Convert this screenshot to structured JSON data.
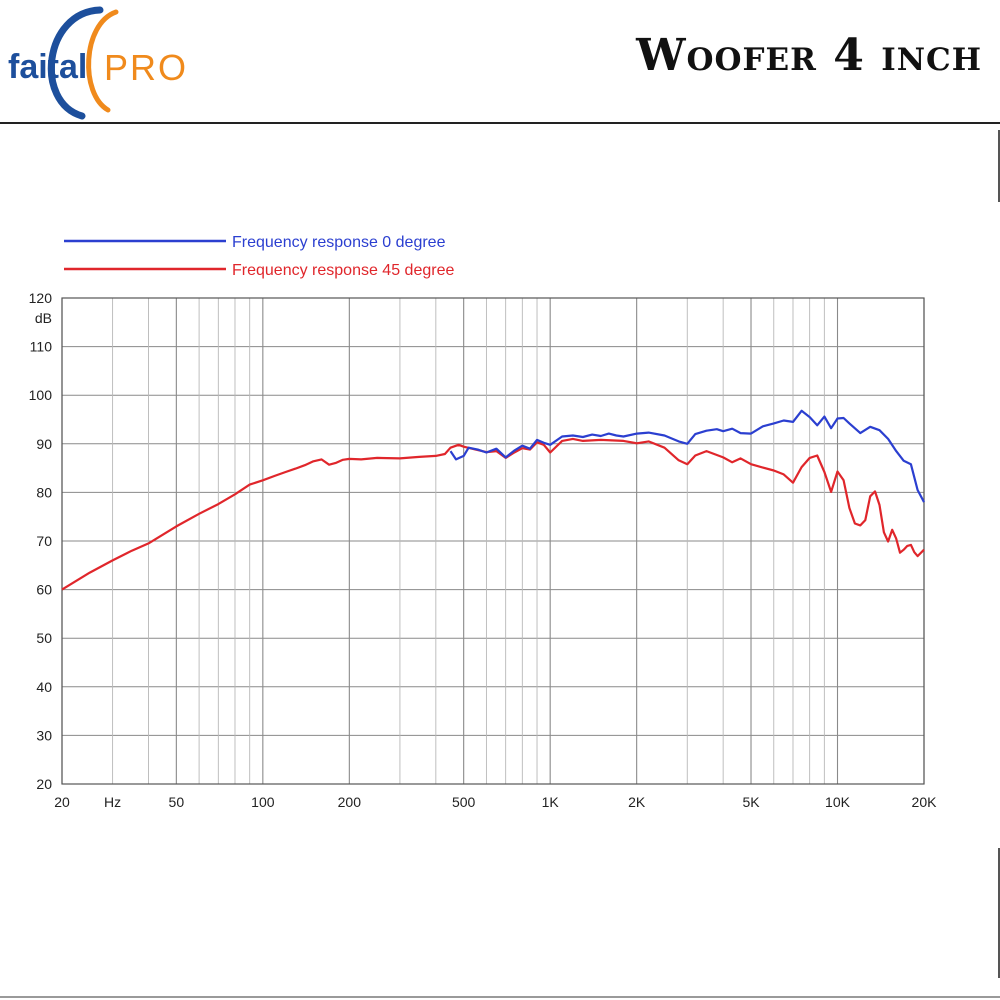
{
  "header": {
    "logo": {
      "text_primary": "faital",
      "text_secondary": "PRO",
      "primary_color": "#1d4f9c",
      "secondary_color": "#f08a1c"
    },
    "title": "Woofer 4 inch"
  },
  "colors": {
    "blue_series": "#2b3fd0",
    "red_series": "#e0262b",
    "grid_major": "#8a8a8a",
    "grid_minor": "#b8b8b8"
  },
  "chart_data": {
    "type": "line",
    "x_scale": "log",
    "xlim": [
      20,
      20000
    ],
    "ylim": [
      20,
      120
    ],
    "ylabel": "dB",
    "xunit": "Hz",
    "grid": true,
    "legend_placement": "top-left",
    "y_ticks": [
      120,
      110,
      100,
      90,
      80,
      70,
      60,
      50,
      40,
      30,
      20
    ],
    "x_ticks": [
      {
        "value": 20,
        "label": "20"
      },
      {
        "value": 30,
        "label": "Hz"
      },
      {
        "value": 50,
        "label": "50"
      },
      {
        "value": 100,
        "label": "100"
      },
      {
        "value": 200,
        "label": "200"
      },
      {
        "value": 500,
        "label": "500"
      },
      {
        "value": 1000,
        "label": "1K"
      },
      {
        "value": 2000,
        "label": "2K"
      },
      {
        "value": 5000,
        "label": "5K"
      },
      {
        "value": 10000,
        "label": "10K"
      },
      {
        "value": 20000,
        "label": "20K"
      }
    ],
    "series": [
      {
        "name": "Frequency response 0 degree",
        "color": "#2b3fd0",
        "points": [
          [
            450,
            88.5
          ],
          [
            470,
            86.8
          ],
          [
            500,
            87.5
          ],
          [
            520,
            89.2
          ],
          [
            560,
            88.8
          ],
          [
            600,
            88.2
          ],
          [
            650,
            89
          ],
          [
            700,
            87.2
          ],
          [
            750,
            88.6
          ],
          [
            800,
            89.6
          ],
          [
            850,
            89
          ],
          [
            900,
            90.8
          ],
          [
            950,
            90.2
          ],
          [
            1000,
            89.8
          ],
          [
            1100,
            91.5
          ],
          [
            1200,
            91.7
          ],
          [
            1300,
            91.4
          ],
          [
            1400,
            91.9
          ],
          [
            1500,
            91.6
          ],
          [
            1600,
            92.1
          ],
          [
            1700,
            91.7
          ],
          [
            1800,
            91.5
          ],
          [
            2000,
            92.1
          ],
          [
            2200,
            92.3
          ],
          [
            2500,
            91.7
          ],
          [
            2800,
            90.5
          ],
          [
            3000,
            90
          ],
          [
            3200,
            92
          ],
          [
            3500,
            92.7
          ],
          [
            3800,
            93
          ],
          [
            4000,
            92.6
          ],
          [
            4300,
            93.1
          ],
          [
            4600,
            92.2
          ],
          [
            5000,
            92.1
          ],
          [
            5500,
            93.6
          ],
          [
            6000,
            94.2
          ],
          [
            6500,
            94.8
          ],
          [
            7000,
            94.5
          ],
          [
            7500,
            96.8
          ],
          [
            8000,
            95.5
          ],
          [
            8500,
            93.8
          ],
          [
            9000,
            95.6
          ],
          [
            9500,
            93.2
          ],
          [
            10000,
            95.2
          ],
          [
            10500,
            95.3
          ],
          [
            11000,
            94.2
          ],
          [
            12000,
            92.2
          ],
          [
            13000,
            93.5
          ],
          [
            14000,
            92.8
          ],
          [
            15000,
            91
          ],
          [
            16000,
            88.5
          ],
          [
            17000,
            86.5
          ],
          [
            18000,
            85.8
          ],
          [
            19000,
            80.5
          ],
          [
            20000,
            78
          ]
        ]
      },
      {
        "name": "Frequency response 45 degree",
        "color": "#e0262b",
        "points": [
          [
            20,
            60
          ],
          [
            25,
            63.5
          ],
          [
            30,
            66
          ],
          [
            35,
            68
          ],
          [
            40,
            69.5
          ],
          [
            50,
            73
          ],
          [
            60,
            75.6
          ],
          [
            70,
            77.6
          ],
          [
            80,
            79.6
          ],
          [
            90,
            81.6
          ],
          [
            100,
            82.5
          ],
          [
            110,
            83.4
          ],
          [
            120,
            84.2
          ],
          [
            130,
            84.9
          ],
          [
            140,
            85.6
          ],
          [
            150,
            86.4
          ],
          [
            160,
            86.8
          ],
          [
            170,
            85.7
          ],
          [
            180,
            86.1
          ],
          [
            190,
            86.7
          ],
          [
            200,
            86.9
          ],
          [
            220,
            86.8
          ],
          [
            250,
            87.1
          ],
          [
            300,
            87
          ],
          [
            350,
            87.3
          ],
          [
            400,
            87.5
          ],
          [
            430,
            87.9
          ],
          [
            450,
            89.2
          ],
          [
            480,
            89.8
          ],
          [
            500,
            89.4
          ],
          [
            550,
            88.8
          ],
          [
            600,
            88.3
          ],
          [
            650,
            88.5
          ],
          [
            700,
            87.1
          ],
          [
            750,
            88.2
          ],
          [
            800,
            89.1
          ],
          [
            850,
            88.8
          ],
          [
            900,
            90.3
          ],
          [
            950,
            89.8
          ],
          [
            1000,
            88.2
          ],
          [
            1100,
            90.6
          ],
          [
            1200,
            91
          ],
          [
            1300,
            90.6
          ],
          [
            1500,
            90.8
          ],
          [
            1800,
            90.6
          ],
          [
            2000,
            90.1
          ],
          [
            2200,
            90.5
          ],
          [
            2500,
            89.2
          ],
          [
            2800,
            86.6
          ],
          [
            3000,
            85.8
          ],
          [
            3200,
            87.6
          ],
          [
            3500,
            88.5
          ],
          [
            4000,
            87.2
          ],
          [
            4300,
            86.2
          ],
          [
            4600,
            87
          ],
          [
            5000,
            85.8
          ],
          [
            5500,
            85.1
          ],
          [
            6000,
            84.5
          ],
          [
            6500,
            83.7
          ],
          [
            7000,
            82
          ],
          [
            7500,
            85.2
          ],
          [
            8000,
            87.1
          ],
          [
            8500,
            87.6
          ],
          [
            9000,
            84.2
          ],
          [
            9500,
            80.1
          ],
          [
            10000,
            84.3
          ],
          [
            10500,
            82.5
          ],
          [
            11000,
            76.8
          ],
          [
            11500,
            73.6
          ],
          [
            12000,
            73.2
          ],
          [
            12500,
            74.3
          ],
          [
            13000,
            79.2
          ],
          [
            13500,
            80.2
          ],
          [
            14000,
            77.4
          ],
          [
            14500,
            71.8
          ],
          [
            15000,
            69.9
          ],
          [
            15500,
            72.3
          ],
          [
            16000,
            70.5
          ],
          [
            16500,
            67.6
          ],
          [
            17000,
            68.2
          ],
          [
            17500,
            69
          ],
          [
            18000,
            69.2
          ],
          [
            18500,
            67.7
          ],
          [
            19000,
            66.9
          ],
          [
            20000,
            68.2
          ]
        ]
      }
    ]
  }
}
